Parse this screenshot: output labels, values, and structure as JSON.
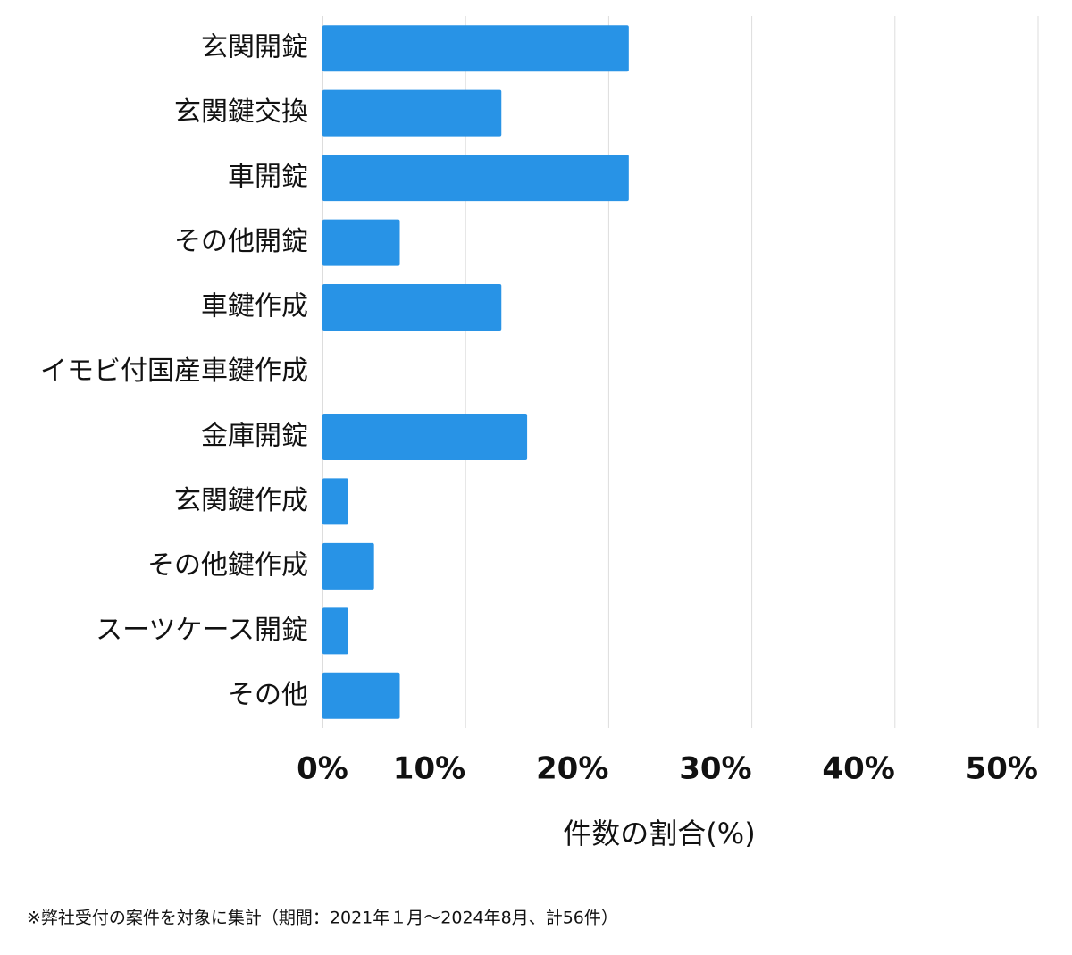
{
  "chart_data": {
    "type": "bar",
    "orientation": "horizontal",
    "categories": [
      "玄関開錠",
      "玄関鍵交換",
      "車開錠",
      "その他開錠",
      "車鍵作成",
      "イモビ付国産車鍵作成",
      "金庫開錠",
      "玄関鍵作成",
      "その他鍵作成",
      "スーツケース開錠",
      "その他"
    ],
    "values": [
      21.4,
      12.5,
      21.4,
      5.4,
      12.5,
      0,
      14.3,
      1.8,
      3.6,
      1.8,
      5.4
    ],
    "color": "#2893e6",
    "xlim": [
      0,
      50
    ],
    "xticks": [
      {
        "value": 0,
        "label": "0%"
      },
      {
        "value": 10,
        "label": "10%"
      },
      {
        "value": 20,
        "label": "20%"
      },
      {
        "value": 30,
        "label": "30%"
      },
      {
        "value": 40,
        "label": "40%"
      },
      {
        "value": 50,
        "label": "50%"
      }
    ],
    "xlabel": "件数の割合(%)",
    "grid": true,
    "footnote": "※弊社受付の案件を対象に集計（期間：2021年１月〜2024年8月、計56件）"
  }
}
